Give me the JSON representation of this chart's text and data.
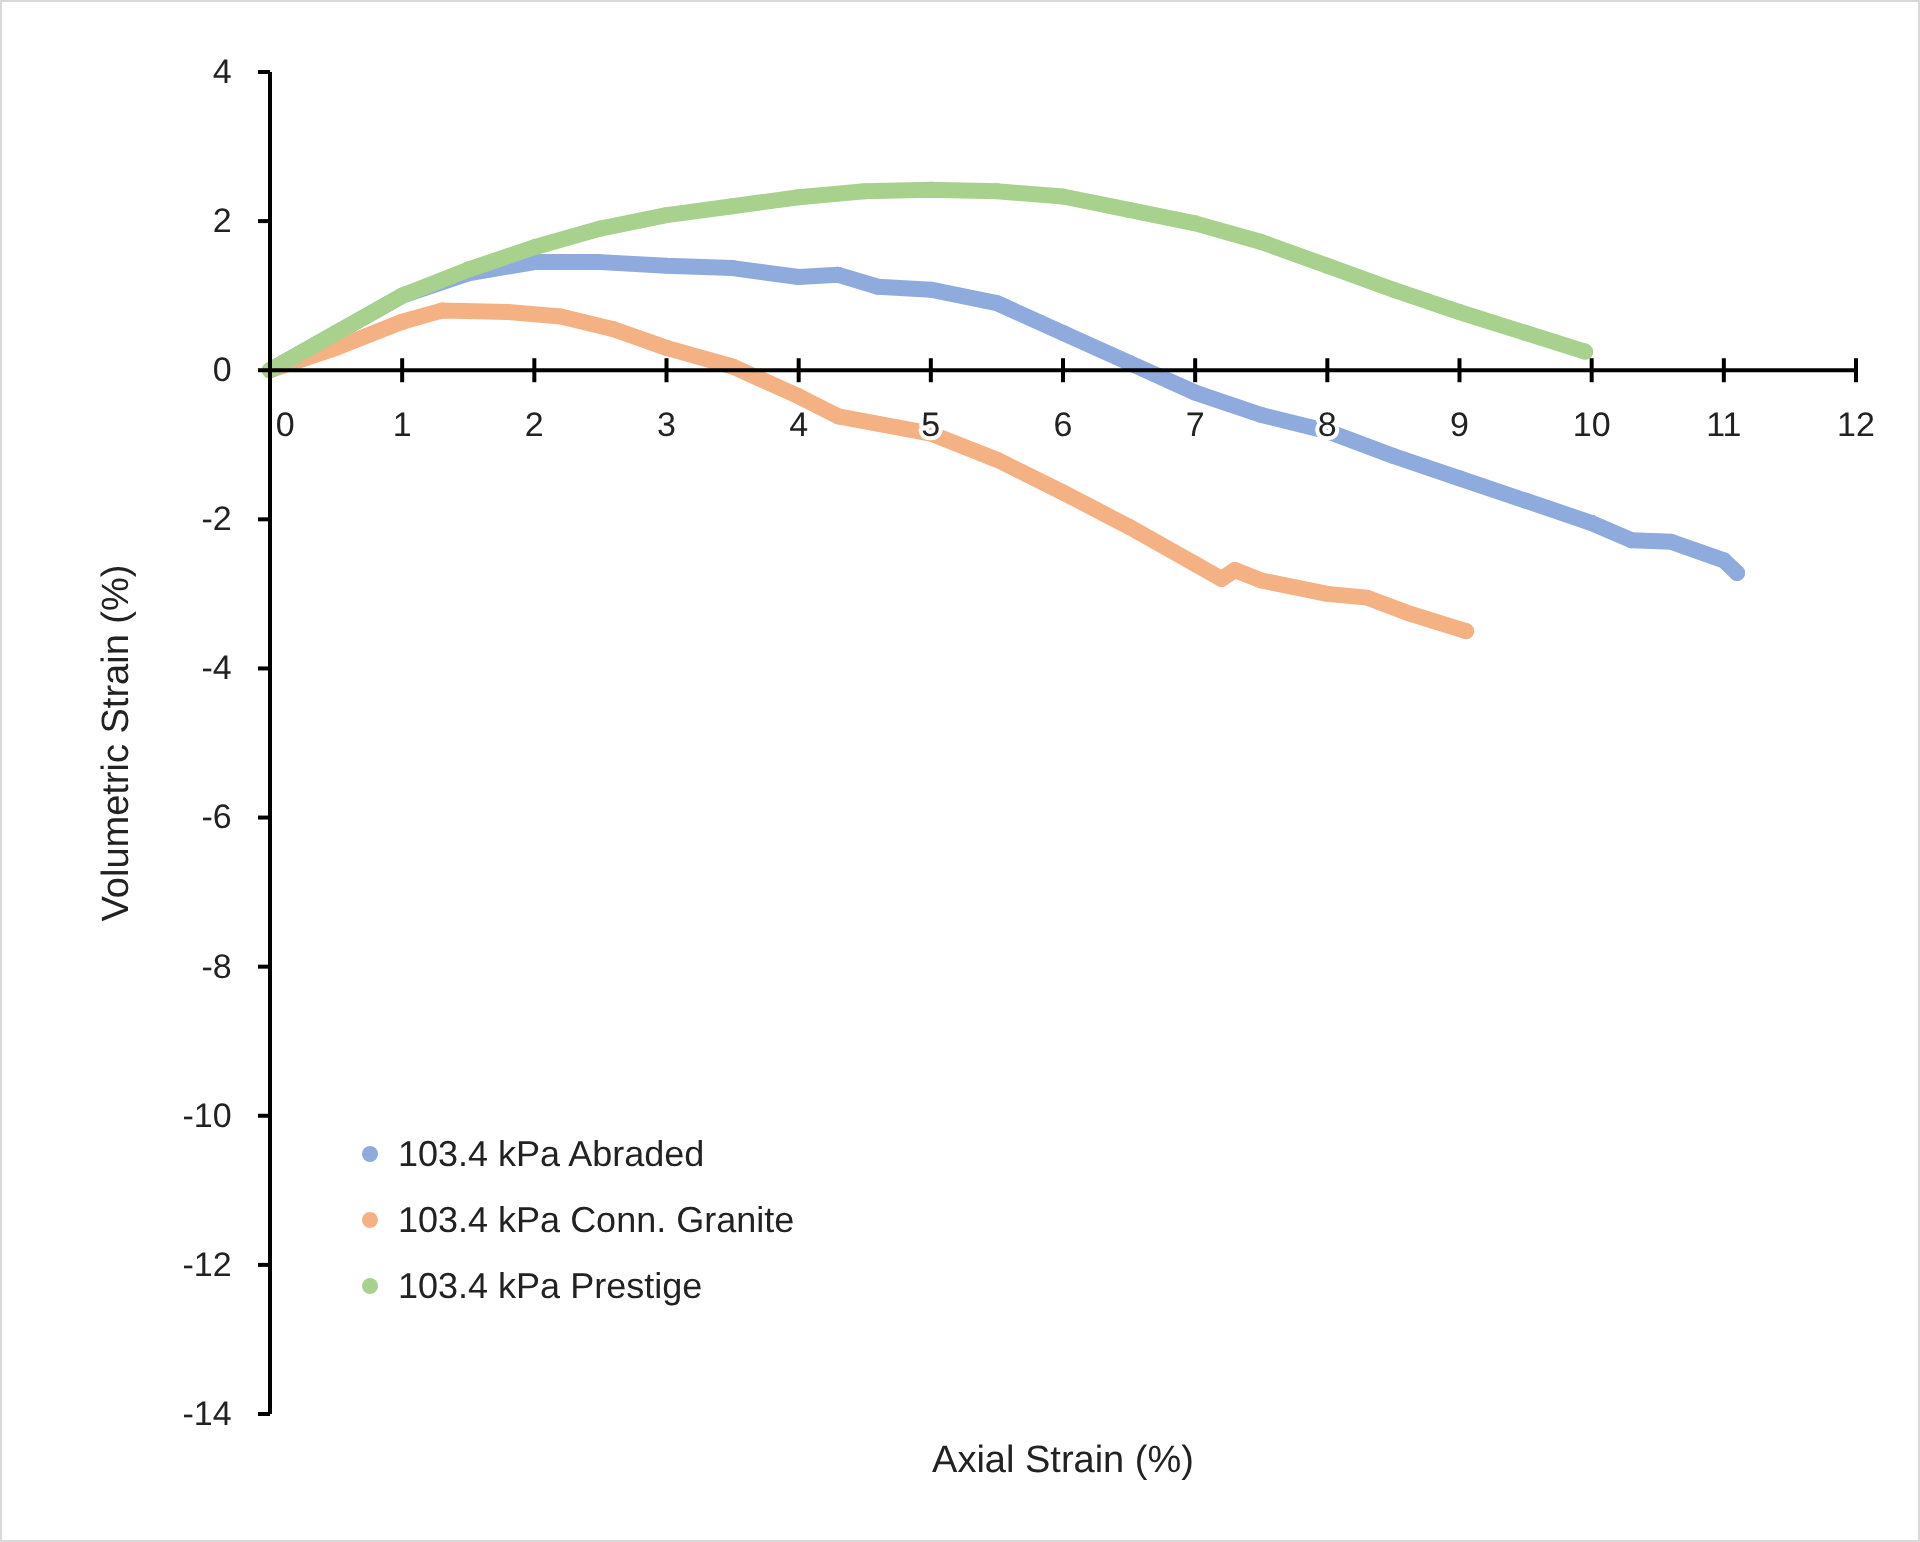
{
  "chart_data": {
    "type": "line",
    "xlabel": "Axial Strain (%)",
    "ylabel": "Volumetric Strain (%)",
    "xlim": [
      0,
      12
    ],
    "xticks": [
      0,
      1,
      2,
      3,
      4,
      5,
      6,
      7,
      8,
      9,
      10,
      11,
      12
    ],
    "ylim": [
      -14,
      4
    ],
    "yticks": [
      -14,
      -12,
      -10,
      -8,
      -6,
      -4,
      -2,
      0,
      2,
      4
    ],
    "grid": false,
    "legend": "bottom left",
    "marker": "circle",
    "series": [
      {
        "name": "103.4 kPa Abraded",
        "color": "#8faadc",
        "x": [
          0,
          0.5,
          1,
          1.5,
          2,
          2.5,
          3,
          3.5,
          4,
          4.3,
          4.6,
          5,
          5.5,
          6,
          6.5,
          7,
          7.5,
          8,
          8.5,
          9,
          9.5,
          10,
          10.3,
          10.6,
          11,
          11.1
        ],
        "values": [
          0,
          0.5,
          1.0,
          1.3,
          1.45,
          1.45,
          1.4,
          1.37,
          1.25,
          1.28,
          1.12,
          1.08,
          0.9,
          0.5,
          0.1,
          -0.3,
          -0.6,
          -0.82,
          -1.15,
          -1.45,
          -1.75,
          -2.05,
          -2.28,
          -2.3,
          -2.55,
          -2.72
        ]
      },
      {
        "name": "103.4 kPa Conn. Granite",
        "color": "#f4b183",
        "x": [
          0,
          0.5,
          1,
          1.3,
          1.8,
          2.2,
          2.6,
          3,
          3.5,
          4,
          4.3,
          5,
          5.5,
          6,
          6.5,
          7,
          7.2,
          7.3,
          7.5,
          8,
          8.3,
          8.6,
          9.05
        ],
        "values": [
          0,
          0.3,
          0.65,
          0.8,
          0.78,
          0.72,
          0.55,
          0.3,
          0.05,
          -0.35,
          -0.62,
          -0.85,
          -1.2,
          -1.64,
          -2.1,
          -2.6,
          -2.8,
          -2.68,
          -2.82,
          -3.0,
          -3.05,
          -3.25,
          -3.5
        ]
      },
      {
        "name": "103.4 kPa Prestige",
        "color": "#a9d18e",
        "x": [
          0,
          0.5,
          1,
          1.5,
          2,
          2.5,
          3,
          3.5,
          4,
          4.5,
          5,
          5.5,
          6,
          6.5,
          7,
          7.5,
          8,
          8.5,
          9,
          9.5,
          9.95
        ],
        "values": [
          0,
          0.5,
          1.0,
          1.35,
          1.65,
          1.9,
          2.08,
          2.2,
          2.32,
          2.4,
          2.42,
          2.4,
          2.33,
          2.15,
          1.97,
          1.72,
          1.4,
          1.08,
          0.78,
          0.5,
          0.25
        ]
      }
    ]
  }
}
